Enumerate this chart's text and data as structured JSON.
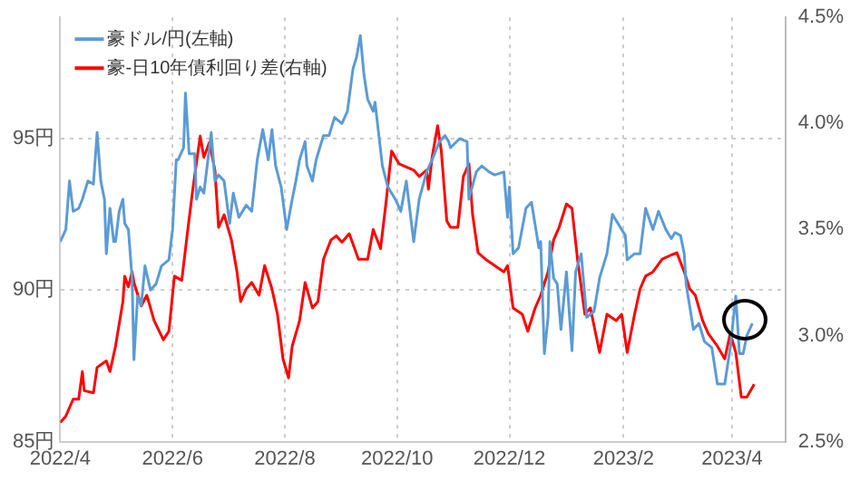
{
  "chart_data": {
    "type": "line",
    "legend": "top left",
    "grid": true,
    "marker": "none",
    "line_style": "solid",
    "xlim": [
      "2022-04-01",
      "2023-04-30"
    ],
    "xticks": [
      {
        "value": "2022-04-01",
        "label": "2022/4"
      },
      {
        "value": "2022-06-01",
        "label": "2022/6"
      },
      {
        "value": "2022-08-01",
        "label": "2022/8"
      },
      {
        "value": "2022-10-01",
        "label": "2022/10"
      },
      {
        "value": "2022-12-01",
        "label": "2022/12"
      },
      {
        "value": "2023-02-01",
        "label": "2023/2"
      },
      {
        "value": "2023-04-01",
        "label": "2023/4"
      }
    ],
    "ylim": [
      85,
      99
    ],
    "yticks": [
      {
        "value": 85,
        "label": "85円"
      },
      {
        "value": 90,
        "label": "90円"
      },
      {
        "value": 95,
        "label": "95円"
      }
    ],
    "y2lim": [
      2.5,
      4.5
    ],
    "y2ticks": [
      {
        "value": 2.5,
        "label": "2.5%"
      },
      {
        "value": 3,
        "label": "3.0%"
      },
      {
        "value": 3.5,
        "label": "3.5%"
      },
      {
        "value": 4,
        "label": "4.0%"
      },
      {
        "value": 4.5,
        "label": "4.5%"
      }
    ],
    "series": [
      {
        "name": "豪ドル/円(左軸)",
        "color": "#5b9bd5",
        "x": [
          "2022-04-01",
          "2022-04-04",
          "2022-04-06",
          "2022-04-08",
          "2022-04-11",
          "2022-04-13",
          "2022-04-16",
          "2022-04-19",
          "2022-04-21",
          "2022-04-23",
          "2022-04-25",
          "2022-04-26",
          "2022-04-28",
          "2022-04-30",
          "2022-05-01",
          "2022-05-03",
          "2022-05-05",
          "2022-05-06",
          "2022-05-08",
          "2022-05-10",
          "2022-05-11",
          "2022-05-13",
          "2022-05-15",
          "2022-05-17",
          "2022-05-20",
          "2022-05-23",
          "2022-05-26",
          "2022-05-30",
          "2022-06-01",
          "2022-06-03",
          "2022-06-04",
          "2022-06-07",
          "2022-06-08",
          "2022-06-10",
          "2022-06-13",
          "2022-06-14",
          "2022-06-16",
          "2022-06-18",
          "2022-06-22",
          "2022-06-24",
          "2022-06-26",
          "2022-06-29",
          "2022-07-02",
          "2022-07-04",
          "2022-07-07",
          "2022-07-11",
          "2022-07-14",
          "2022-07-17",
          "2022-07-20",
          "2022-07-23",
          "2022-07-25",
          "2022-07-27",
          "2022-07-30",
          "2022-08-02",
          "2022-08-05",
          "2022-08-07",
          "2022-08-09",
          "2022-08-12",
          "2022-08-13",
          "2022-08-16",
          "2022-08-18",
          "2022-08-22",
          "2022-08-25",
          "2022-08-28",
          "2022-09-01",
          "2022-09-04",
          "2022-09-07",
          "2022-09-09",
          "2022-09-11",
          "2022-09-13",
          "2022-09-15",
          "2022-09-18",
          "2022-09-19",
          "2022-09-23",
          "2022-09-26",
          "2022-09-30",
          "2022-10-03",
          "2022-10-06",
          "2022-10-10",
          "2022-10-13",
          "2022-10-17",
          "2022-10-20",
          "2022-10-24",
          "2022-10-27",
          "2022-10-29",
          "2022-10-30",
          "2022-11-04",
          "2022-11-08",
          "2022-11-09",
          "2022-11-13",
          "2022-11-16",
          "2022-11-20",
          "2022-11-23",
          "2022-11-28",
          "2022-11-30",
          "2022-12-01",
          "2022-12-03",
          "2022-12-06",
          "2022-12-10",
          "2022-12-13",
          "2022-12-17",
          "2022-12-18",
          "2022-12-20",
          "2022-12-22",
          "2022-12-23",
          "2022-12-25",
          "2022-12-27",
          "2022-12-29",
          "2023-01-01",
          "2023-01-04",
          "2023-01-06",
          "2023-01-09",
          "2023-01-12",
          "2023-01-16",
          "2023-01-19",
          "2023-01-23",
          "2023-01-26",
          "2023-01-29",
          "2023-02-02",
          "2023-02-03",
          "2023-02-07",
          "2023-02-10",
          "2023-02-13",
          "2023-02-17",
          "2023-02-20",
          "2023-02-24",
          "2023-02-27",
          "2023-03-01",
          "2023-03-04",
          "2023-03-06",
          "2023-03-07",
          "2023-03-11",
          "2023-03-14",
          "2023-03-17",
          "2023-03-21",
          "2023-03-24",
          "2023-03-28",
          "2023-03-31",
          "2023-04-03",
          "2023-04-05",
          "2023-04-07",
          "2023-04-09",
          "2023-04-12"
        ],
        "values": [
          91.6,
          92.0,
          93.6,
          92.6,
          92.7,
          93.0,
          93.6,
          93.5,
          95.2,
          93.6,
          93.0,
          91.2,
          92.7,
          91.6,
          91.6,
          92.6,
          93.0,
          92.2,
          92.0,
          90.4,
          87.7,
          89.8,
          89.5,
          90.8,
          90.0,
          90.2,
          90.8,
          91.0,
          92.0,
          94.3,
          94.3,
          94.7,
          96.5,
          94.5,
          94.5,
          93.0,
          93.4,
          93.2,
          95.2,
          93.6,
          93.8,
          93.6,
          92.2,
          93.2,
          92.4,
          92.8,
          92.6,
          94.3,
          95.3,
          94.3,
          95.3,
          94.1,
          93.4,
          92.0,
          93.0,
          93.6,
          94.3,
          94.9,
          94.1,
          93.6,
          94.3,
          95.1,
          95.1,
          95.7,
          95.5,
          95.9,
          97.3,
          97.7,
          98.4,
          97.1,
          96.3,
          95.9,
          96.2,
          94.1,
          93.4,
          93.0,
          92.6,
          93.6,
          91.6,
          93.0,
          93.9,
          94.3,
          94.9,
          95.1,
          94.9,
          94.7,
          95.0,
          94.9,
          93.0,
          93.9,
          94.1,
          93.9,
          93.8,
          93.9,
          92.4,
          93.4,
          91.2,
          91.4,
          92.7,
          92.9,
          91.4,
          91.6,
          87.9,
          89.1,
          91.6,
          90.4,
          90.2,
          88.7,
          90.6,
          88.0,
          90.6,
          91.2,
          89.1,
          89.3,
          90.4,
          91.2,
          92.5,
          92.2,
          91.8,
          91.0,
          91.2,
          91.2,
          92.7,
          92.0,
          92.6,
          92.0,
          91.7,
          91.9,
          91.8,
          91.2,
          90.2,
          88.7,
          88.9,
          88.3,
          88.1,
          86.9,
          86.9,
          88.1,
          89.8,
          87.9,
          87.9,
          88.5,
          88.9
        ]
      },
      {
        "name": "豪-日10年債利回り差(右軸)",
        "color": "#ff0000",
        "axis": "y2",
        "x": [
          "2022-04-01",
          "2022-04-04",
          "2022-04-08",
          "2022-04-11",
          "2022-04-13",
          "2022-04-14",
          "2022-04-19",
          "2022-04-21",
          "2022-04-26",
          "2022-04-28",
          "2022-05-01",
          "2022-05-05",
          "2022-05-06",
          "2022-05-08",
          "2022-05-10",
          "2022-05-11",
          "2022-05-15",
          "2022-05-18",
          "2022-05-22",
          "2022-05-27",
          "2022-05-30",
          "2022-06-02",
          "2022-06-06",
          "2022-06-09",
          "2022-06-12",
          "2022-06-16",
          "2022-06-18",
          "2022-06-21",
          "2022-06-24",
          "2022-06-26",
          "2022-06-29",
          "2022-07-03",
          "2022-07-06",
          "2022-07-08",
          "2022-07-11",
          "2022-07-14",
          "2022-07-18",
          "2022-07-21",
          "2022-07-25",
          "2022-07-28",
          "2022-07-31",
          "2022-08-03",
          "2022-08-05",
          "2022-08-09",
          "2022-08-12",
          "2022-08-16",
          "2022-08-19",
          "2022-08-22",
          "2022-08-26",
          "2022-08-29",
          "2022-09-01",
          "2022-09-05",
          "2022-09-10",
          "2022-09-15",
          "2022-09-18",
          "2022-09-22",
          "2022-09-25",
          "2022-09-28",
          "2022-10-02",
          "2022-10-10",
          "2022-10-13",
          "2022-10-17",
          "2022-10-18",
          "2022-10-20",
          "2022-10-23",
          "2022-10-25",
          "2022-10-28",
          "2022-10-30",
          "2022-11-03",
          "2022-11-06",
          "2022-11-09",
          "2022-11-11",
          "2022-11-14",
          "2022-11-18",
          "2022-11-23",
          "2022-11-28",
          "2022-11-30",
          "2022-12-03",
          "2022-12-08",
          "2022-12-11",
          "2022-12-15",
          "2022-12-18",
          "2022-12-22",
          "2022-12-25",
          "2022-12-28",
          "2023-01-01",
          "2023-01-04",
          "2023-01-07",
          "2023-01-11",
          "2023-01-14",
          "2023-01-19",
          "2023-01-23",
          "2023-01-28",
          "2023-01-31",
          "2023-02-03",
          "2023-02-07",
          "2023-02-10",
          "2023-02-13",
          "2023-02-17",
          "2023-02-22",
          "2023-02-27",
          "2023-03-02",
          "2023-03-06",
          "2023-03-09",
          "2023-03-12",
          "2023-03-16",
          "2023-03-19",
          "2023-03-24",
          "2023-03-28",
          "2023-03-31",
          "2023-04-03",
          "2023-04-06",
          "2023-04-09",
          "2023-04-13"
        ],
        "values": [
          2.59,
          2.62,
          2.7,
          2.7,
          2.83,
          2.74,
          2.73,
          2.85,
          2.88,
          2.83,
          2.95,
          3.16,
          3.28,
          3.23,
          3.3,
          3.25,
          3.14,
          3.19,
          3.07,
          2.98,
          3.02,
          3.28,
          3.26,
          3.48,
          3.69,
          3.94,
          3.84,
          3.91,
          3.78,
          3.51,
          3.57,
          3.45,
          3.3,
          3.16,
          3.22,
          3.25,
          3.19,
          3.33,
          3.22,
          3.1,
          2.89,
          2.8,
          2.95,
          3.07,
          3.25,
          3.13,
          3.16,
          3.36,
          3.45,
          3.47,
          3.44,
          3.48,
          3.36,
          3.36,
          3.5,
          3.41,
          3.63,
          3.87,
          3.81,
          3.78,
          3.75,
          3.78,
          3.69,
          3.84,
          3.99,
          3.87,
          3.54,
          3.51,
          3.51,
          3.75,
          3.81,
          3.57,
          3.39,
          3.36,
          3.33,
          3.3,
          3.33,
          3.13,
          3.1,
          3.02,
          3.13,
          3.19,
          3.3,
          3.45,
          3.51,
          3.62,
          3.6,
          3.36,
          3.1,
          3.13,
          2.92,
          3.1,
          3.07,
          3.1,
          2.92,
          3.1,
          3.22,
          3.28,
          3.3,
          3.36,
          3.38,
          3.39,
          3.3,
          3.22,
          3.19,
          3.07,
          3.01,
          2.95,
          2.89,
          3.01,
          2.92,
          2.71,
          2.71,
          2.77
        ]
      }
    ]
  }
}
